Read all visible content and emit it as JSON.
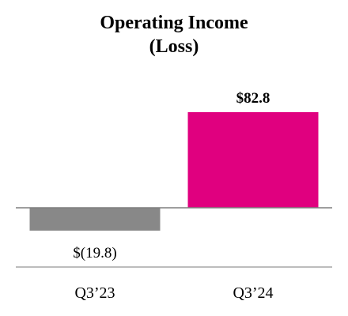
{
  "chart_data": {
    "type": "bar",
    "title_lines": [
      "Operating Income",
      "(Loss)"
    ],
    "categories": [
      "Q3’23",
      "Q3’24"
    ],
    "values": [
      -19.8,
      82.8
    ],
    "data_labels": [
      "$(19.8)",
      "$82.8"
    ],
    "bar_colors": [
      "#888888",
      "#E0007F"
    ],
    "axis_color": "#7F7F7F",
    "ylim": [
      -25,
      90
    ],
    "grid": false,
    "legend": "none",
    "xlabel": "",
    "ylabel": ""
  }
}
